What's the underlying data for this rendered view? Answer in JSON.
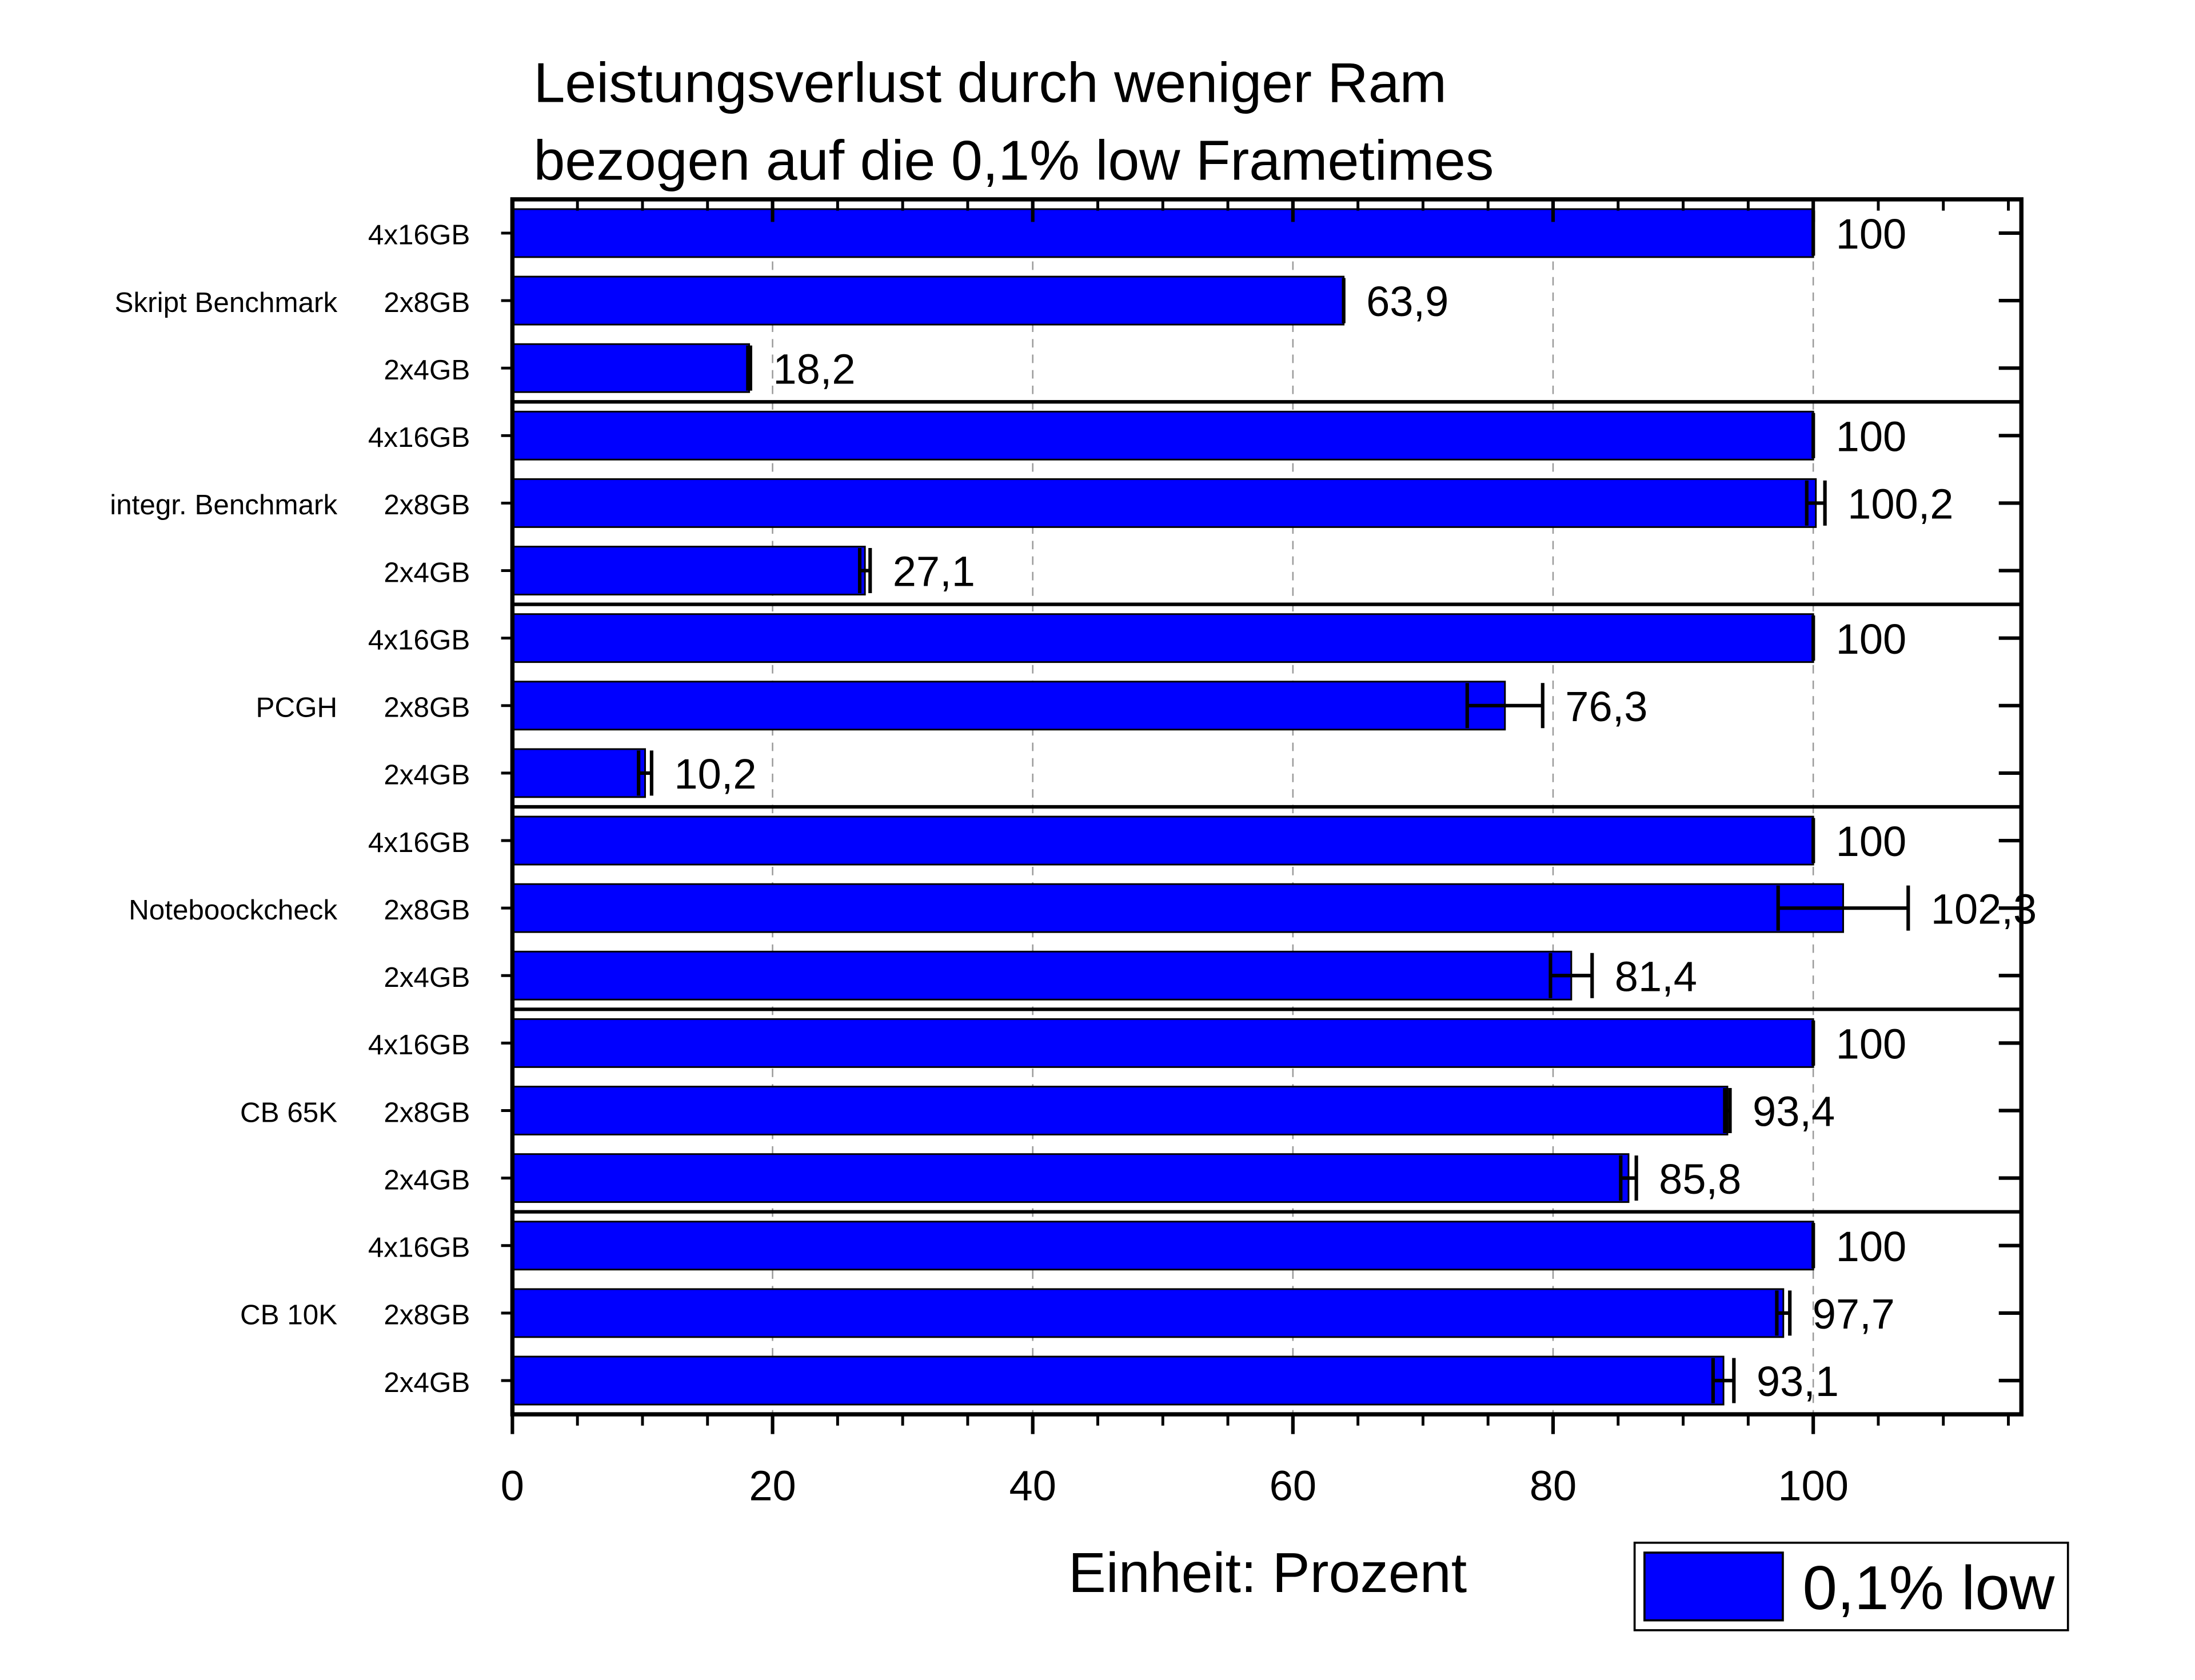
{
  "chart_data": {
    "type": "bar",
    "orientation": "horizontal",
    "title_lines": [
      "Leistungsverlust durch weniger Ram",
      "bezogen auf die 0,1% low Frametimes"
    ],
    "xlabel": "Einheit: Prozent",
    "ylabel": "",
    "xlim": [
      0,
      116
    ],
    "x_ticks": [
      0,
      20,
      40,
      60,
      80,
      100
    ],
    "x_tick_labels": [
      "0",
      "20",
      "40",
      "60",
      "80",
      "100"
    ],
    "x_minor_step": 5,
    "grid": "vertical dashed at major ticks",
    "legend": {
      "placement": "bottom-right",
      "entries": [
        "0,1% low"
      ]
    },
    "bar_color": "#0000ff",
    "groups": [
      {
        "name": "Skript Benchmark",
        "categories": [
          "4x16GB",
          "2x8GB",
          "2x4GB"
        ],
        "values": [
          100,
          63.9,
          18.2
        ],
        "labels": [
          "100",
          "63,9",
          "18,2"
        ],
        "errors": [
          0,
          0,
          0.1
        ]
      },
      {
        "name": "integr. Benchmark",
        "categories": [
          "4x16GB",
          "2x8GB",
          "2x4GB"
        ],
        "values": [
          100,
          100.2,
          27.1
        ],
        "labels": [
          "100",
          "100,2",
          "27,1"
        ],
        "errors": [
          0,
          0.7,
          0.4
        ]
      },
      {
        "name": "PCGH",
        "categories": [
          "4x16GB",
          "2x8GB",
          "2x4GB"
        ],
        "values": [
          100,
          76.3,
          10.2
        ],
        "labels": [
          "100",
          "76,3",
          "10,2"
        ],
        "errors": [
          0,
          2.9,
          0.5
        ]
      },
      {
        "name": "Noteboockcheck",
        "categories": [
          "4x16GB",
          "2x8GB",
          "2x4GB"
        ],
        "values": [
          100,
          102.3,
          81.4
        ],
        "labels": [
          "100",
          "102,3",
          "81,4"
        ],
        "errors": [
          0,
          5.0,
          1.6
        ]
      },
      {
        "name": "CB 65K",
        "categories": [
          "4x16GB",
          "2x8GB",
          "2x4GB"
        ],
        "values": [
          100,
          93.4,
          85.8
        ],
        "labels": [
          "100",
          "93,4",
          "85,8"
        ],
        "errors": [
          0,
          0.2,
          0.6
        ]
      },
      {
        "name": "CB 10K",
        "categories": [
          "4x16GB",
          "2x8GB",
          "2x4GB"
        ],
        "values": [
          100,
          97.7,
          93.1
        ],
        "labels": [
          "100",
          "97,7",
          "93,1"
        ],
        "errors": [
          0,
          0.5,
          0.8
        ]
      }
    ]
  }
}
